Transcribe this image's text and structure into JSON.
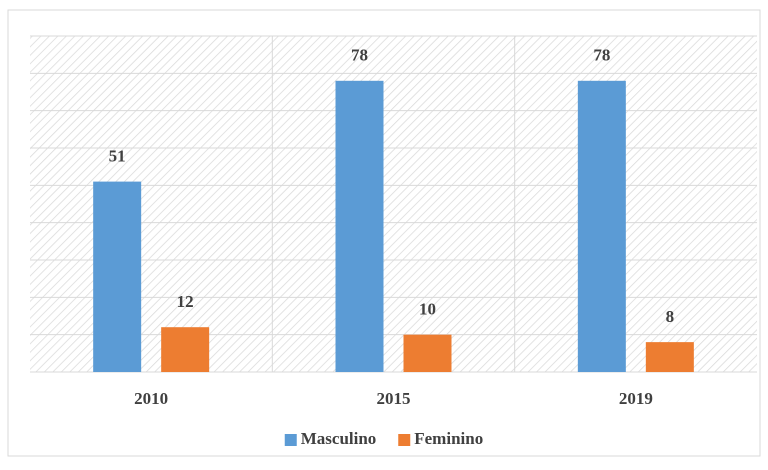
{
  "chart_data": {
    "type": "bar",
    "categories": [
      "2010",
      "2015",
      "2019"
    ],
    "series": [
      {
        "name": "Masculino",
        "color": "#5b9bd5",
        "values": [
          51,
          78,
          78
        ]
      },
      {
        "name": "Feminino",
        "color": "#ed7d31",
        "values": [
          12,
          10,
          8
        ]
      }
    ],
    "ylim": [
      0,
      90
    ],
    "yticks": [
      0,
      10,
      20,
      30,
      40,
      50,
      60,
      70,
      80,
      90
    ],
    "grid": true,
    "legend": "bottom"
  }
}
